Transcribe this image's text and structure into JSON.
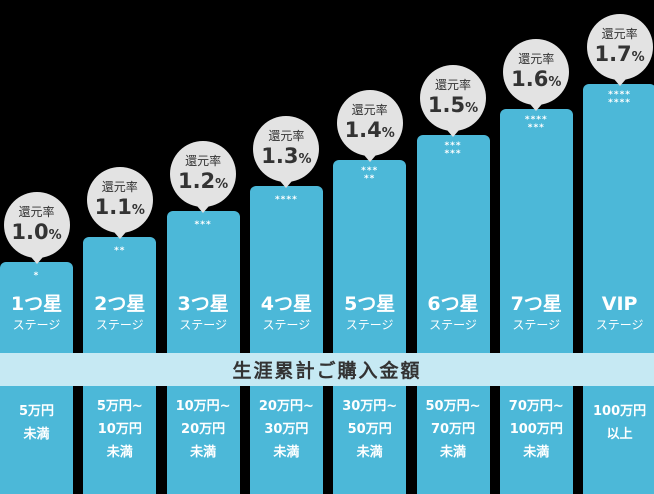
{
  "chart_data": {
    "type": "bar",
    "title": "",
    "categories": [
      "1つ星",
      "2つ星",
      "3つ星",
      "4つ星",
      "5つ星",
      "6つ星",
      "7つ星",
      "VIP"
    ],
    "stage_suffix": "ステージ",
    "stars": [
      "*",
      "**",
      "***",
      "****",
      "***\n**",
      "***\n***",
      "****\n***",
      "****\n****"
    ],
    "rate_label": "還元率",
    "rate_unit": "%",
    "values": [
      1.0,
      1.1,
      1.2,
      1.3,
      1.4,
      1.5,
      1.6,
      1.7
    ],
    "value_labels": [
      "1.0",
      "1.1",
      "1.2",
      "1.3",
      "1.4",
      "1.5",
      "1.6",
      "1.7"
    ],
    "band_label": "生涯累計ご購入金額",
    "amounts": [
      [
        "5万円",
        "未満"
      ],
      [
        "5万円~",
        "10万円",
        "未満"
      ],
      [
        "10万円~",
        "20万円",
        "未満"
      ],
      [
        "20万円~",
        "30万円",
        "未満"
      ],
      [
        "30万円~",
        "50万円",
        "未満"
      ],
      [
        "50万円~",
        "70万円",
        "未満"
      ],
      [
        "70万円~",
        "100万円",
        "未満"
      ],
      [
        "100万円",
        "以上"
      ]
    ],
    "colors": {
      "bar": "#4cb8d8",
      "band": "#c6e9f3",
      "bubble": "#e3e3e3",
      "background": "#000000"
    }
  }
}
